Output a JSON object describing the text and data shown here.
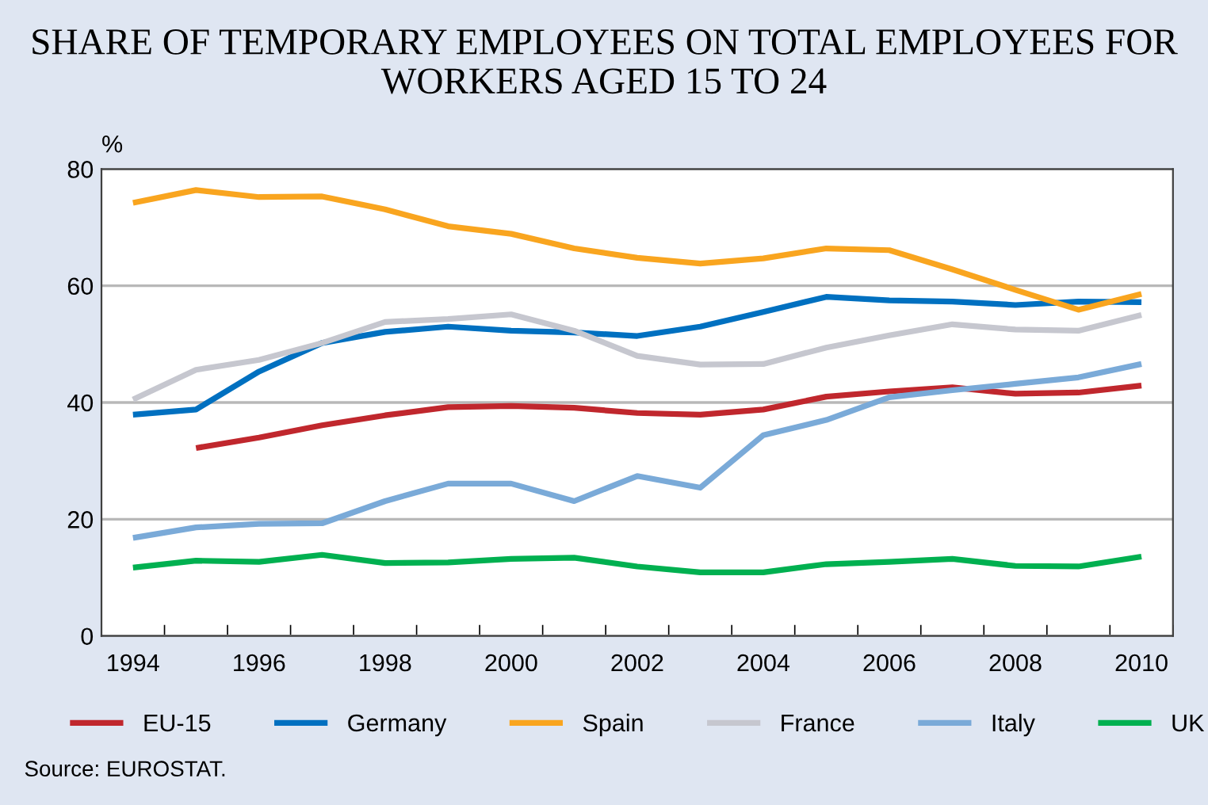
{
  "chart_data": {
    "type": "line",
    "title": "SHARE OF TEMPORARY EMPLOYEES ON TOTAL EMPLOYEES FOR WORKERS AGED 15 TO 24",
    "ylabel": "%",
    "x": [
      1994,
      1995,
      1996,
      1997,
      1998,
      1999,
      2000,
      2001,
      2002,
      2003,
      2004,
      2005,
      2006,
      2007,
      2008,
      2009,
      2010
    ],
    "series": [
      {
        "name": "EU-15",
        "color": "#c0272d",
        "values": [
          null,
          32.2,
          34.0,
          36.1,
          37.8,
          39.2,
          39.4,
          39.1,
          38.2,
          37.9,
          38.8,
          41.0,
          41.9,
          42.6,
          41.5,
          41.7,
          42.9
        ]
      },
      {
        "name": "Germany",
        "color": "#0070c0",
        "values": [
          37.9,
          38.8,
          45.3,
          50.2,
          52.1,
          53.0,
          52.3,
          52.0,
          51.4,
          53.0,
          55.5,
          58.1,
          57.5,
          57.3,
          56.7,
          57.3,
          57.2
        ]
      },
      {
        "name": "Spain",
        "color": "#f9a51f",
        "values": [
          74.2,
          76.4,
          75.2,
          75.3,
          73.1,
          70.2,
          68.9,
          66.4,
          64.8,
          63.8,
          64.7,
          66.4,
          66.1,
          62.8,
          59.3,
          55.9,
          58.6
        ]
      },
      {
        "name": "France",
        "color": "#c6c7cf",
        "values": [
          40.5,
          45.6,
          47.3,
          50.2,
          53.8,
          54.3,
          55.1,
          52.3,
          48.0,
          46.5,
          46.6,
          49.4,
          51.5,
          53.4,
          52.5,
          52.3,
          55.0
        ]
      },
      {
        "name": "Italy",
        "color": "#7aaad8",
        "values": [
          16.8,
          18.6,
          19.2,
          19.3,
          23.1,
          26.1,
          26.1,
          23.1,
          27.4,
          25.4,
          34.4,
          37.0,
          40.9,
          42.1,
          43.2,
          44.3,
          46.6
        ]
      },
      {
        "name": "UK",
        "color": "#00b050",
        "values": [
          11.7,
          12.9,
          12.7,
          13.9,
          12.5,
          12.6,
          13.2,
          13.4,
          11.9,
          10.9,
          10.9,
          12.3,
          12.7,
          13.2,
          12.0,
          11.9,
          13.6
        ]
      }
    ],
    "xlim": [
      1993.5,
      2010.5
    ],
    "xticks": [
      1994,
      1996,
      1998,
      2000,
      2002,
      2004,
      2006,
      2008,
      2010,
      {
        "value": 1993.5,
        "label": null
      },
      {
        "value": 1994.5,
        "label": null
      },
      {
        "value": 1995.5,
        "label": null
      },
      {
        "value": 1996.5,
        "label": null
      },
      {
        "value": 1997.5,
        "label": null
      },
      {
        "value": 1998.5,
        "label": null
      },
      {
        "value": 1999.5,
        "label": null
      },
      {
        "value": 2000.5,
        "label": null
      },
      {
        "value": 2001.5,
        "label": null
      },
      {
        "value": 2002.5,
        "label": null
      },
      {
        "value": 2003.5,
        "label": null
      },
      {
        "value": 2004.5,
        "label": null
      },
      {
        "value": 2005.5,
        "label": null
      },
      {
        "value": 2006.5,
        "label": null
      },
      {
        "value": 2007.5,
        "label": null
      },
      {
        "value": 2008.5,
        "label": null
      },
      {
        "value": 2009.5,
        "label": null
      },
      {
        "value": 2010.5,
        "label": null
      }
    ],
    "ylim": [
      0,
      80
    ],
    "yticks": [
      0,
      20,
      40,
      60,
      80
    ],
    "grid": "y",
    "legend": "bottom",
    "marker": "none",
    "line_style": "solid",
    "annotations": [
      "Source: EUROSTAT."
    ]
  }
}
